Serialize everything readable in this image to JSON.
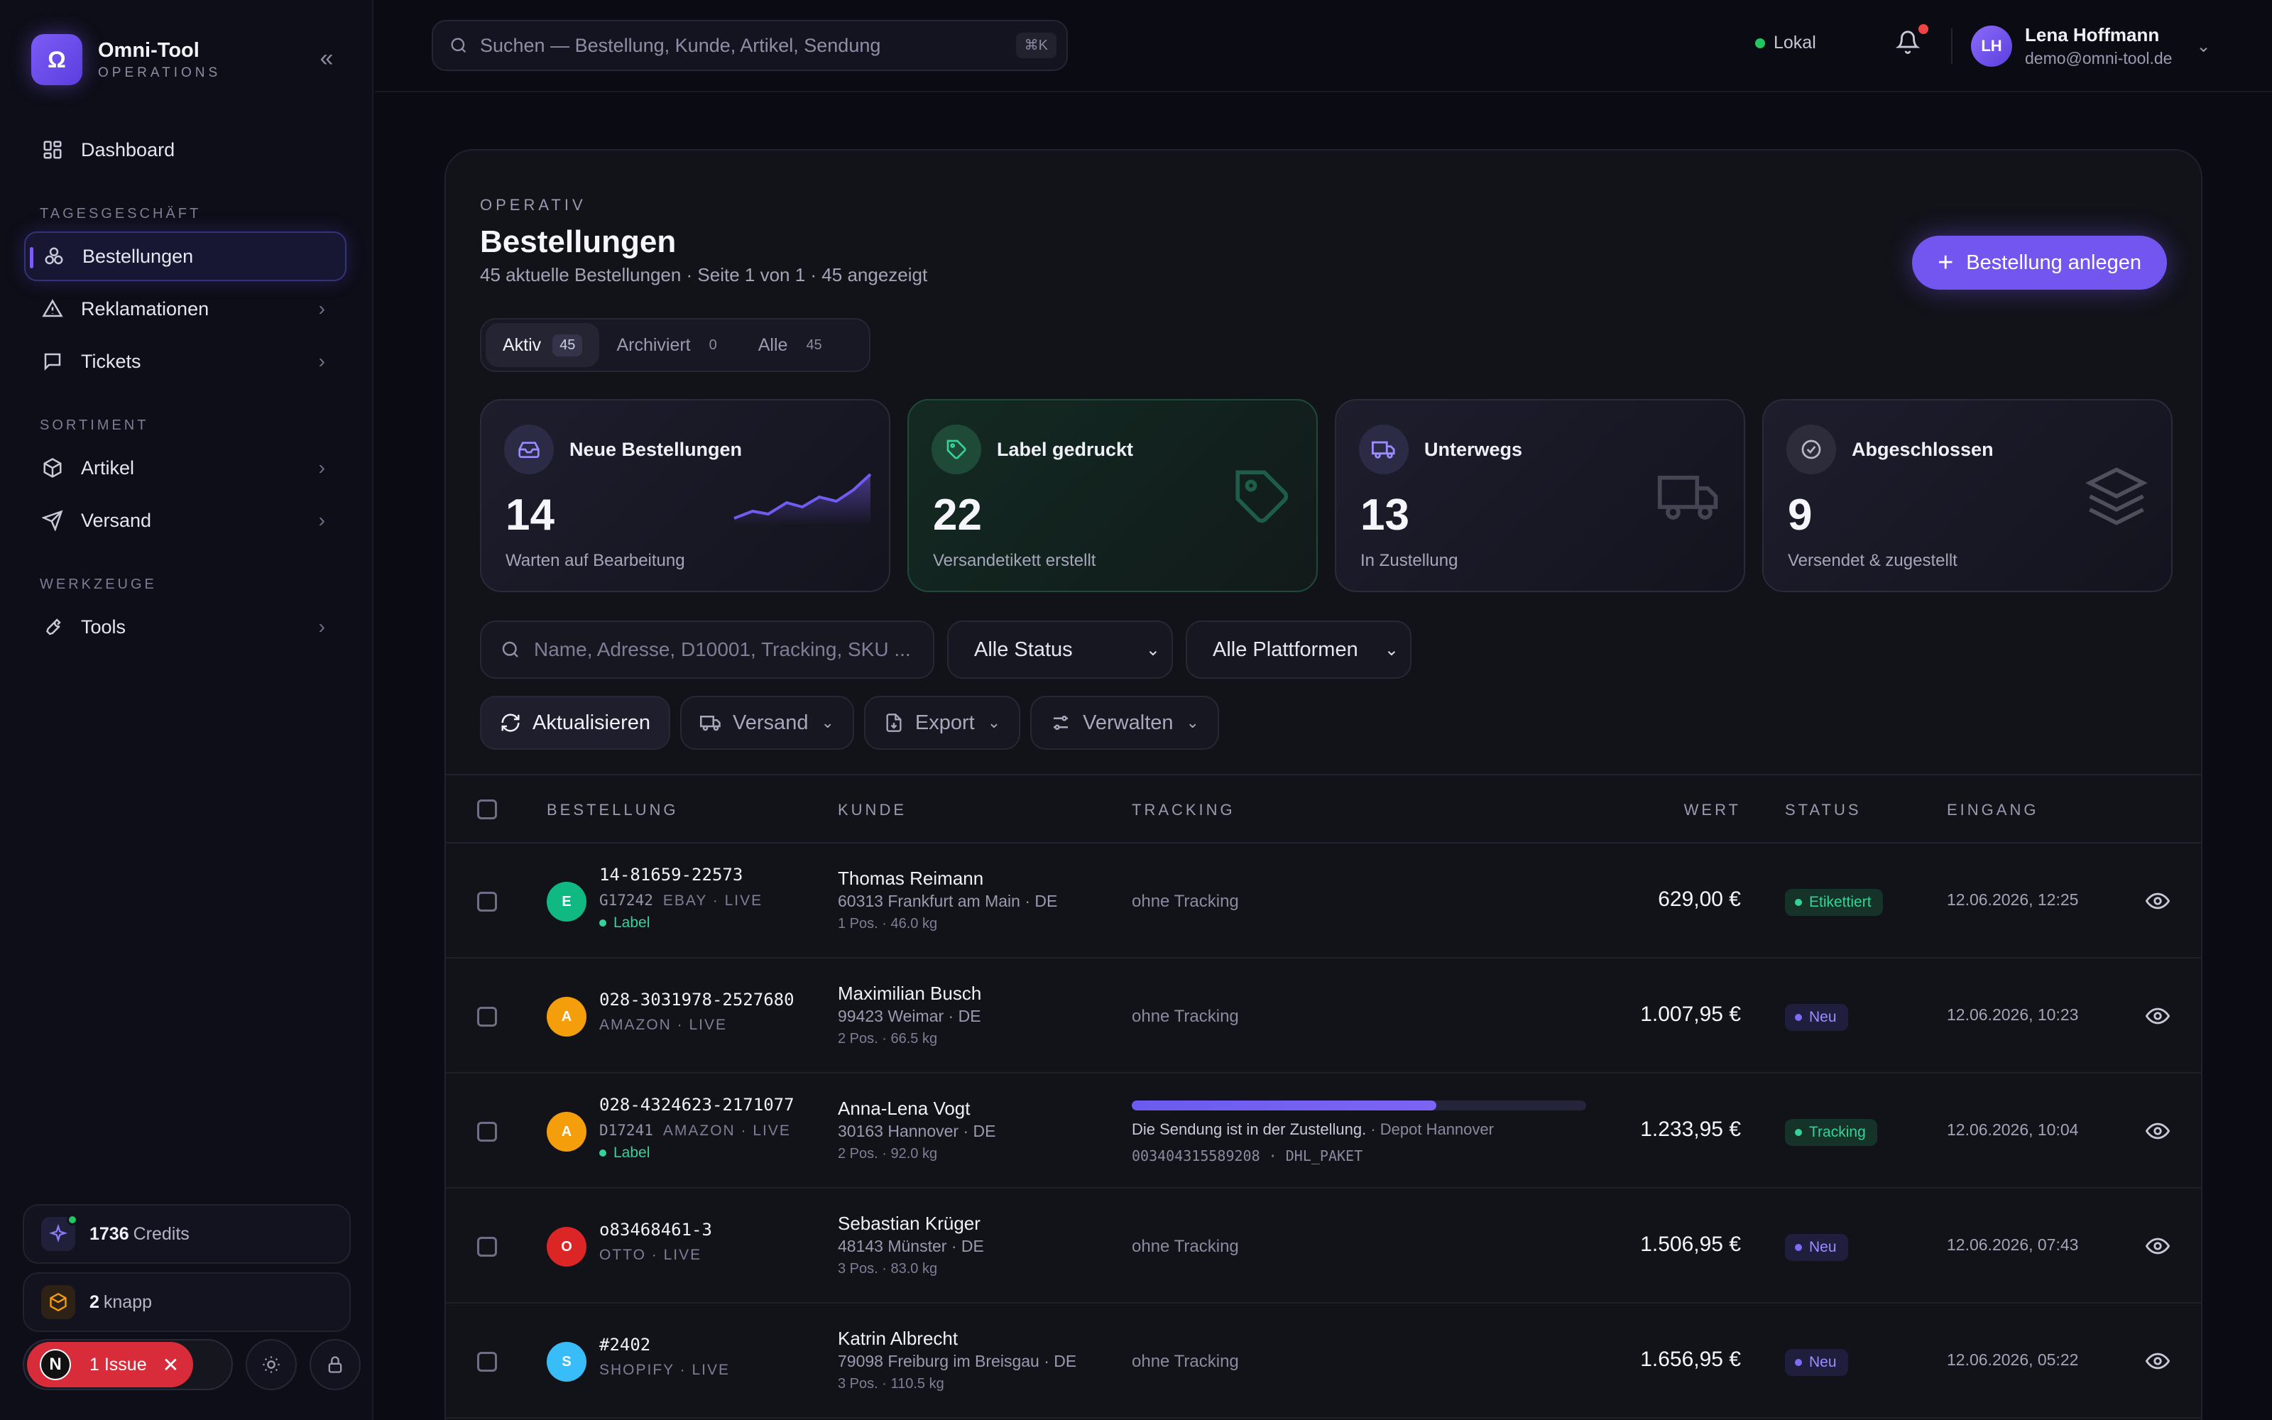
{
  "brand": {
    "name": "Omni-Tool",
    "subtitle": "OPERATIONS",
    "logo": "Ω"
  },
  "sidebar": {
    "dashboard": "Dashboard",
    "section_daily": "TAGESGESCHÄFT",
    "bestellungen": "Bestellungen",
    "reklamationen": "Reklamationen",
    "tickets": "Tickets",
    "section_assortment": "SORTIMENT",
    "artikel": "Artikel",
    "versand": "Versand",
    "section_tools": "WERKZEUGE",
    "tools": "Tools",
    "credits_value": "1736",
    "credits_label": "Credits",
    "knapp_value": "2",
    "knapp_label": "knapp",
    "issue_letter": "N",
    "issue_label": "1 Issue"
  },
  "topbar": {
    "search_placeholder": "Suchen — Bestellung, Kunde, Artikel, Sendung",
    "search_shortcut": "⌘K",
    "env_label": "Lokal",
    "user_initials": "LH",
    "user_name": "Lena Hoffmann",
    "user_email": "demo@omni-tool.de"
  },
  "page": {
    "eyebrow": "OPERATIV",
    "title": "Bestellungen",
    "subtitle": "45 aktuelle Bestellungen · Seite 1 von 1 · 45 angezeigt",
    "create_button": "Bestellung anlegen"
  },
  "tabs": [
    {
      "label": "Aktiv",
      "count": "45"
    },
    {
      "label": "Archiviert",
      "count": "0"
    },
    {
      "label": "Alle",
      "count": "45"
    }
  ],
  "kpis": [
    {
      "title": "Neue Bestellungen",
      "value": "14",
      "sub": "Warten auf Bearbeitung",
      "icon": "inbox-icon"
    },
    {
      "title": "Label gedruckt",
      "value": "22",
      "sub": "Versandetikett erstellt",
      "icon": "tag-icon"
    },
    {
      "title": "Unterwegs",
      "value": "13",
      "sub": "In Zustellung",
      "icon": "truck-icon"
    },
    {
      "title": "Abgeschlossen",
      "value": "9",
      "sub": "Versendet & zugestellt",
      "icon": "check-circle-icon"
    }
  ],
  "filters": {
    "search_placeholder": "Name, Adresse, D10001, Tracking, SKU ...",
    "status_select": "Alle Status",
    "platform_select": "Alle Plattformen"
  },
  "actions": {
    "refresh": "Aktualisieren",
    "versand": "Versand",
    "export": "Export",
    "verwalten": "Verwalten"
  },
  "table": {
    "headers": {
      "order": "BESTELLUNG",
      "customer": "KUNDE",
      "tracking": "TRACKING",
      "value": "WERT",
      "status": "STATUS",
      "received": "EINGANG"
    },
    "rows": [
      {
        "platform_letter": "E",
        "platform_color": "#10b981",
        "order_id": "14-81659-22573",
        "sku": "G17242",
        "meta": "EBAY · LIVE",
        "label": "Label",
        "customer": "Thomas Reimann",
        "address": "60313 Frankfurt am Main · DE",
        "positions": "1 Pos.  · 46.0 kg",
        "tracking": "ohne Tracking",
        "value": "629,00 €",
        "status": "Etikettiert",
        "received": "12.06.2026, 12:25"
      },
      {
        "platform_letter": "A",
        "platform_color": "#f59e0b",
        "order_id": "028-3031978-2527680",
        "sku": "",
        "meta": "AMAZON · LIVE",
        "label": "",
        "customer": "Maximilian Busch",
        "address": "99423 Weimar · DE",
        "positions": "2 Pos.  · 66.5 kg",
        "tracking": "ohne Tracking",
        "value": "1.007,95 €",
        "status": "Neu",
        "received": "12.06.2026, 10:23"
      },
      {
        "platform_letter": "A",
        "platform_color": "#f59e0b",
        "order_id": "028-4324623-2171077",
        "sku": "D17241",
        "meta": "AMAZON · LIVE",
        "label": "Label",
        "customer": "Anna-Lena Vogt",
        "address": "30163 Hannover · DE",
        "positions": "2 Pos.  · 92.0 kg",
        "tracking_progress": 0.67,
        "tracking_message": "Die Sendung ist in der Zustellung.",
        "tracking_location": " · Depot Hannover",
        "tracking_code": "003404315589208  ·  DHL_PAKET",
        "value": "1.233,95 €",
        "status": "Tracking",
        "received": "12.06.2026, 10:04"
      },
      {
        "platform_letter": "O",
        "platform_color": "#dc2626",
        "order_id": "o83468461-3",
        "sku": "",
        "meta": "OTTO · LIVE",
        "label": "",
        "customer": "Sebastian Krüger",
        "address": "48143 Münster · DE",
        "positions": "3 Pos.  · 83.0 kg",
        "tracking": "ohne Tracking",
        "value": "1.506,95 €",
        "status": "Neu",
        "received": "12.06.2026, 07:43"
      },
      {
        "platform_letter": "S",
        "platform_color": "#38bdf8",
        "order_id": "#2402",
        "sku": "",
        "meta": "SHOPIFY · LIVE",
        "label": "",
        "customer": "Katrin Albrecht",
        "address": "79098 Freiburg im Breisgau · DE",
        "positions": "3 Pos.  · 110.5 kg",
        "tracking": "ohne Tracking",
        "value": "1.656,95 €",
        "status": "Neu",
        "received": "12.06.2026, 05:22"
      }
    ]
  }
}
